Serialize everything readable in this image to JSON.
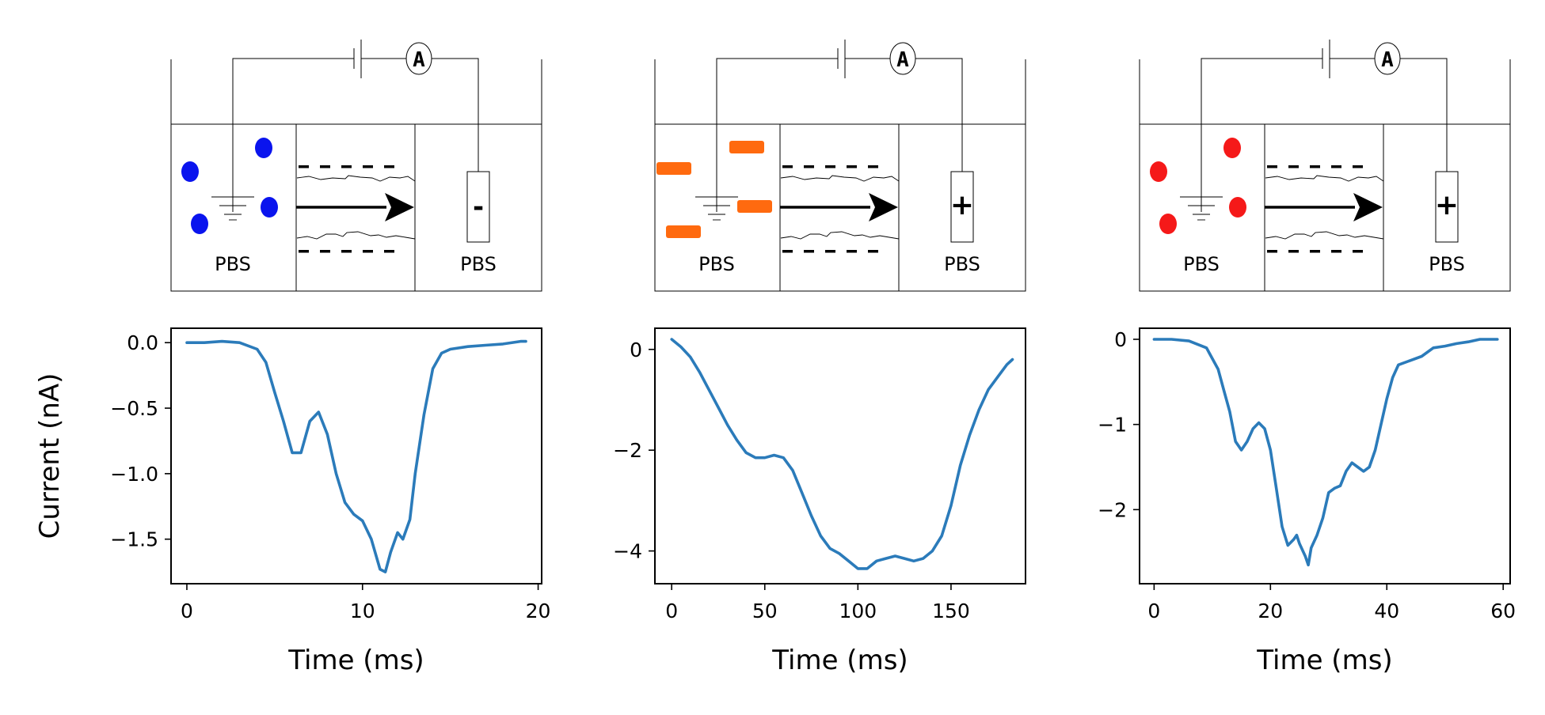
{
  "colors": {
    "trace": "#2b7bba",
    "panel1_particles": "#0a14ee",
    "panel2_particles": "#ff6a0f",
    "panel3_particles": "#f51919"
  },
  "diagram": {
    "ammeter_label": "A",
    "left_reservoir_label": "PBS",
    "right_reservoir_label": "PBS",
    "panels": [
      {
        "electrode_sign": "-",
        "particle_shape": "circle",
        "particle_color_key": "panel1_particles"
      },
      {
        "electrode_sign": "+",
        "particle_shape": "rectangle",
        "particle_color_key": "panel2_particles"
      },
      {
        "electrode_sign": "+",
        "particle_shape": "circle",
        "particle_color_key": "panel3_particles"
      }
    ]
  },
  "chart_data": [
    {
      "type": "line",
      "xlabel": "Time (ms)",
      "ylabel": "Current (nA)",
      "xlim": [
        -0.9,
        20.2
      ],
      "ylim": [
        -1.84,
        0.11
      ],
      "xticks": [
        0,
        10,
        20
      ],
      "yticks": [
        0.0,
        -0.5,
        -1.0,
        -1.5
      ],
      "ytick_labels": [
        "0.0",
        "−0.5",
        "−1.0",
        "−1.5"
      ],
      "series": [
        {
          "x": [
            0,
            1,
            2,
            3,
            4,
            4.5,
            5,
            5.5,
            6,
            6.5,
            7,
            7.5,
            8,
            8.5,
            9,
            9.5,
            10,
            10.5,
            11,
            11.3,
            11.6,
            12,
            12.3,
            12.7,
            13,
            13.5,
            14,
            14.5,
            15,
            16,
            17,
            18,
            19,
            19.3
          ],
          "y": [
            0.0,
            0.0,
            0.01,
            0.0,
            -0.05,
            -0.15,
            -0.38,
            -0.6,
            -0.84,
            -0.84,
            -0.6,
            -0.53,
            -0.7,
            -1.0,
            -1.22,
            -1.31,
            -1.36,
            -1.5,
            -1.73,
            -1.75,
            -1.6,
            -1.45,
            -1.5,
            -1.35,
            -1.0,
            -0.55,
            -0.2,
            -0.08,
            -0.05,
            -0.03,
            -0.02,
            -0.01,
            0.01,
            0.01
          ]
        }
      ]
    },
    {
      "type": "line",
      "xlabel": "Time (ms)",
      "ylabel": "",
      "xlim": [
        -9,
        190
      ],
      "ylim": [
        -4.65,
        0.42
      ],
      "xticks": [
        0,
        50,
        100,
        150
      ],
      "yticks": [
        0,
        -2,
        -4
      ],
      "ytick_labels": [
        "0",
        "−2",
        "−4"
      ],
      "series": [
        {
          "x": [
            0,
            5,
            10,
            15,
            20,
            25,
            30,
            35,
            40,
            45,
            50,
            55,
            60,
            65,
            70,
            75,
            80,
            85,
            90,
            95,
            100,
            105,
            110,
            115,
            120,
            125,
            130,
            135,
            140,
            145,
            150,
            155,
            160,
            165,
            170,
            175,
            180,
            183
          ],
          "y": [
            0.2,
            0.05,
            -0.15,
            -0.45,
            -0.8,
            -1.15,
            -1.5,
            -1.8,
            -2.05,
            -2.15,
            -2.15,
            -2.1,
            -2.15,
            -2.4,
            -2.85,
            -3.3,
            -3.7,
            -3.95,
            -4.05,
            -4.2,
            -4.35,
            -4.35,
            -4.2,
            -4.15,
            -4.1,
            -4.15,
            -4.2,
            -4.15,
            -4.0,
            -3.7,
            -3.1,
            -2.3,
            -1.7,
            -1.2,
            -0.8,
            -0.55,
            -0.3,
            -0.2
          ]
        }
      ]
    },
    {
      "type": "line",
      "xlabel": "Time (ms)",
      "ylabel": "",
      "xlim": [
        -2.5,
        61.2
      ],
      "ylim": [
        -2.87,
        0.13
      ],
      "xticks": [
        0,
        20,
        40,
        60
      ],
      "yticks": [
        0,
        -1,
        -2
      ],
      "ytick_labels": [
        "0",
        "−1",
        "−2"
      ],
      "series": [
        {
          "x": [
            0,
            3,
            6,
            9,
            11,
            12,
            13,
            14,
            15,
            16,
            17,
            18,
            19,
            20,
            21,
            22,
            23,
            24,
            24.5,
            25,
            26,
            26.5,
            27,
            28,
            29,
            30,
            31,
            32,
            33,
            34,
            35,
            36,
            37,
            38,
            39,
            40,
            41,
            42,
            44,
            46,
            48,
            50,
            52,
            54,
            56,
            58,
            59
          ],
          "y": [
            0.0,
            0.0,
            -0.02,
            -0.1,
            -0.35,
            -0.6,
            -0.85,
            -1.2,
            -1.3,
            -1.2,
            -1.05,
            -0.98,
            -1.05,
            -1.3,
            -1.75,
            -2.2,
            -2.42,
            -2.35,
            -2.3,
            -2.4,
            -2.55,
            -2.65,
            -2.45,
            -2.3,
            -2.1,
            -1.8,
            -1.75,
            -1.72,
            -1.55,
            -1.45,
            -1.5,
            -1.55,
            -1.5,
            -1.3,
            -1.0,
            -0.7,
            -0.45,
            -0.3,
            -0.25,
            -0.2,
            -0.1,
            -0.08,
            -0.05,
            -0.03,
            0.0,
            0.0,
            0.0
          ]
        }
      ]
    }
  ]
}
